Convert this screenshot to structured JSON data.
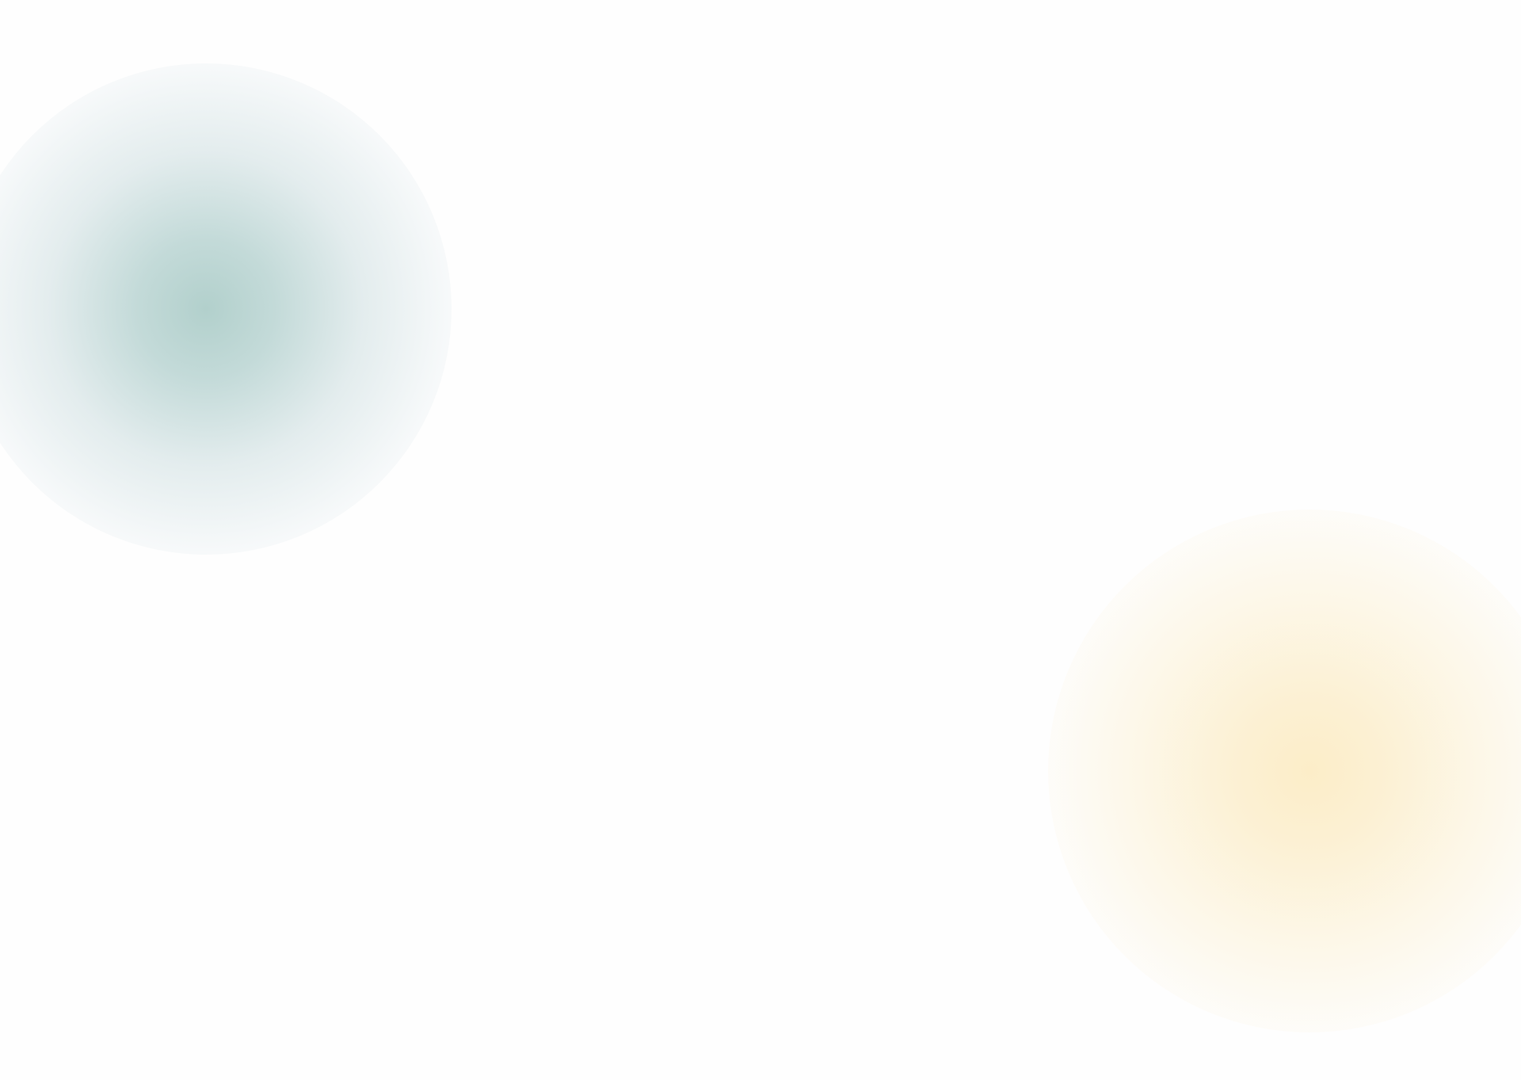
{
  "background": {
    "base_color": "#fefefe",
    "glows": [
      {
        "name": "teal-glow",
        "color": "#b2d0cc"
      },
      {
        "name": "amber-glow",
        "color": "#fcedc8"
      }
    ]
  }
}
